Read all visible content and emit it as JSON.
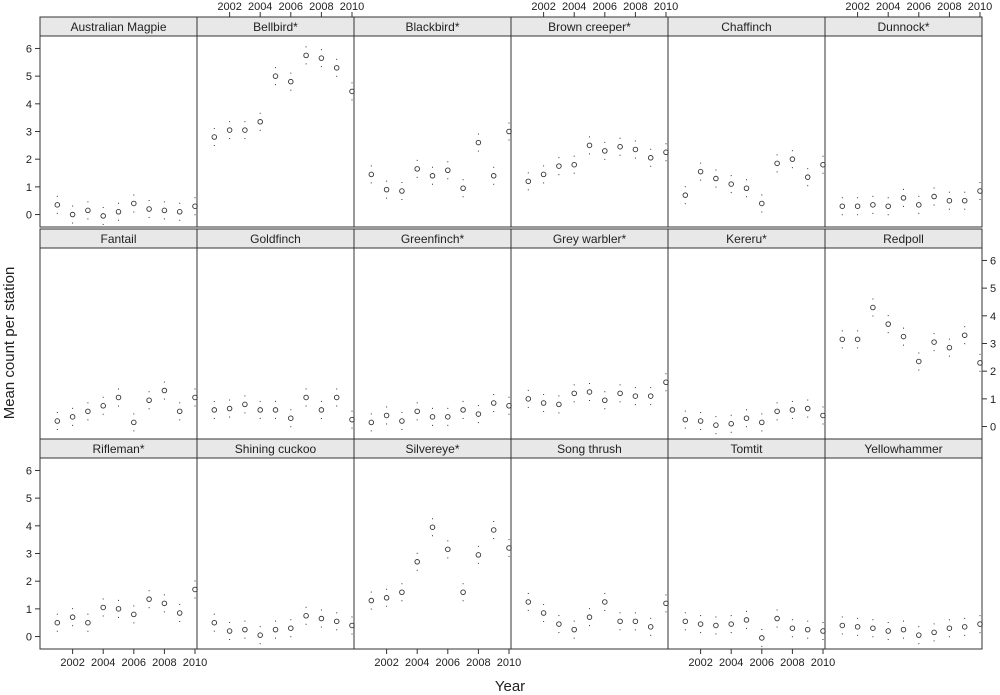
{
  "chart_data": {
    "type": "scatter",
    "layout": {
      "columns": 6,
      "rows": 3
    },
    "xlabel": "Year",
    "ylabel": "Mean count per station",
    "x_ticks": [
      2002,
      2004,
      2006,
      2008,
      2010
    ],
    "y_ticks": [
      0,
      1,
      2,
      3,
      4,
      5,
      6
    ],
    "xlim": [
      2000,
      2010
    ],
    "ylim": [
      -0.45,
      6.45
    ],
    "x": [
      2001,
      2002,
      2003,
      2004,
      2005,
      2006,
      2007,
      2008,
      2009,
      2010
    ],
    "series": [
      {
        "name": "Australian Magpie",
        "values": [
          0.35,
          0.0,
          0.15,
          -0.05,
          0.1,
          0.4,
          0.2,
          0.15,
          0.1,
          0.3
        ]
      },
      {
        "name": "Bellbird*",
        "values": [
          2.8,
          3.05,
          3.05,
          3.35,
          5.0,
          4.8,
          5.75,
          5.65,
          5.3,
          4.45
        ]
      },
      {
        "name": "Blackbird*",
        "values": [
          1.45,
          0.9,
          0.85,
          1.65,
          1.4,
          1.6,
          0.95,
          2.6,
          1.4,
          3.0
        ]
      },
      {
        "name": "Brown creeper*",
        "values": [
          1.2,
          1.45,
          1.75,
          1.8,
          2.5,
          2.3,
          2.45,
          2.35,
          2.05,
          2.25
        ]
      },
      {
        "name": "Chaffinch",
        "values": [
          0.7,
          1.55,
          1.3,
          1.1,
          0.95,
          0.4,
          1.85,
          2.0,
          1.35,
          1.8
        ]
      },
      {
        "name": "Dunnock*",
        "values": [
          0.3,
          0.3,
          0.35,
          0.3,
          0.6,
          0.35,
          0.65,
          0.5,
          0.5,
          0.85
        ]
      },
      {
        "name": "Fantail",
        "values": [
          0.2,
          0.35,
          0.55,
          0.75,
          1.05,
          0.15,
          0.95,
          1.3,
          0.55,
          1.05
        ]
      },
      {
        "name": "Goldfinch",
        "values": [
          0.6,
          0.65,
          0.8,
          0.6,
          0.6,
          0.3,
          1.05,
          0.6,
          1.05,
          0.25
        ]
      },
      {
        "name": "Greenfinch*",
        "values": [
          0.15,
          0.4,
          0.2,
          0.55,
          0.35,
          0.35,
          0.6,
          0.45,
          0.85,
          0.75
        ]
      },
      {
        "name": "Grey warbler*",
        "values": [
          1.0,
          0.85,
          0.8,
          1.2,
          1.25,
          0.95,
          1.2,
          1.1,
          1.1,
          1.6
        ]
      },
      {
        "name": "Kereru*",
        "values": [
          0.25,
          0.2,
          0.05,
          0.1,
          0.3,
          0.15,
          0.55,
          0.6,
          0.65,
          0.4
        ]
      },
      {
        "name": "Redpoll",
        "values": [
          3.15,
          3.15,
          4.3,
          3.7,
          3.25,
          2.35,
          3.05,
          2.85,
          3.3,
          2.3
        ]
      },
      {
        "name": "Rifleman*",
        "values": [
          0.5,
          0.7,
          0.5,
          1.05,
          1.0,
          0.8,
          1.35,
          1.2,
          0.85,
          1.7
        ]
      },
      {
        "name": "Shining cuckoo",
        "values": [
          0.5,
          0.2,
          0.25,
          0.05,
          0.25,
          0.3,
          0.75,
          0.65,
          0.55,
          0.4
        ]
      },
      {
        "name": "Silvereye*",
        "values": [
          1.3,
          1.4,
          1.6,
          2.7,
          3.95,
          3.15,
          1.6,
          2.95,
          3.85,
          3.2
        ]
      },
      {
        "name": "Song thrush",
        "values": [
          1.25,
          0.85,
          0.45,
          0.25,
          0.7,
          1.25,
          0.55,
          0.55,
          0.35,
          1.2
        ]
      },
      {
        "name": "Tomtit",
        "values": [
          0.55,
          0.45,
          0.4,
          0.45,
          0.6,
          -0.05,
          0.65,
          0.3,
          0.25,
          0.2
        ]
      },
      {
        "name": "Yellowhammer",
        "values": [
          0.4,
          0.35,
          0.3,
          0.2,
          0.25,
          0.05,
          0.15,
          0.3,
          0.35,
          0.45
        ]
      }
    ],
    "colors": {
      "panel_border": "#333333",
      "strip_fill": "#e8e8e8",
      "marker": "#333333"
    }
  }
}
